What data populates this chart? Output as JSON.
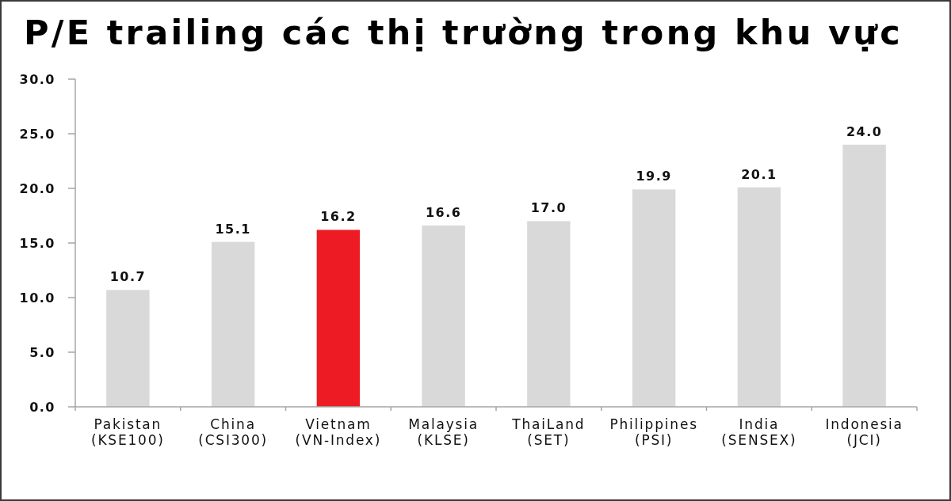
{
  "chart_data": {
    "type": "bar",
    "title": "P/E trailing các thị trường trong khu vực",
    "categories": [
      "Pakistan\n(KSE100)",
      "China\n(CSI300)",
      "Vietnam\n(VN-Index)",
      "Malaysia\n(KLSE)",
      "ThaiLand\n(SET)",
      "Philippines\n(PSI)",
      "India\n(SENSEX)",
      "Indonesia\n(JCI)"
    ],
    "values": [
      10.7,
      15.1,
      16.2,
      16.6,
      17.0,
      19.9,
      20.1,
      24.0
    ],
    "colors": [
      "#d9d9d9",
      "#d9d9d9",
      "#ed1c24",
      "#d9d9d9",
      "#d9d9d9",
      "#d9d9d9",
      "#d9d9d9",
      "#d9d9d9"
    ],
    "value_labels": [
      "10.7",
      "15.1",
      "16.2",
      "16.6",
      "17.0",
      "19.9",
      "20.1",
      "24.0"
    ],
    "ylim": [
      0,
      30
    ],
    "yticks": [
      {
        "value": 0,
        "label": "0.0"
      },
      {
        "value": 5,
        "label": "5.0"
      },
      {
        "value": 10,
        "label": "10.0"
      },
      {
        "value": 15,
        "label": "15.0"
      },
      {
        "value": 20,
        "label": "20.0"
      },
      {
        "value": 25,
        "label": "25.0"
      },
      {
        "value": 30,
        "label": "30.0"
      }
    ]
  }
}
